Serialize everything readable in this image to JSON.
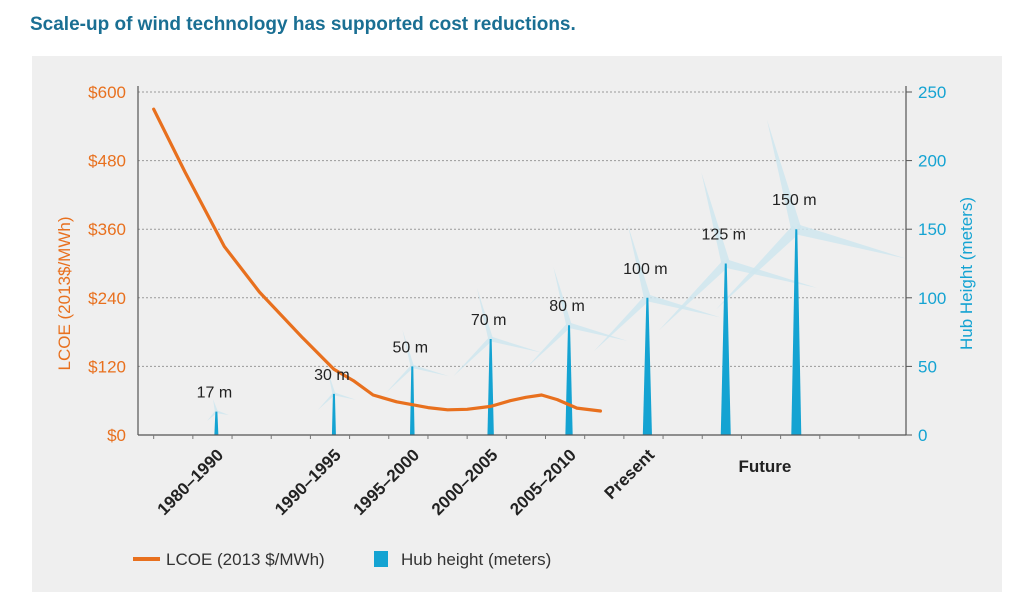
{
  "header": {
    "title": "Scale-up of wind technology has supported cost reductions."
  },
  "colors": {
    "lcoe": "#e8701e",
    "hub": "#14a3d2",
    "grid": "#9a9a9a",
    "panel": "#efefef",
    "title": "#1a6f93"
  },
  "chart_data": {
    "type": "line",
    "categories": [
      "1980–1990",
      "1990–1995",
      "1995–2000",
      "2000–2005",
      "2005–2010",
      "Present",
      "Future"
    ],
    "left_axis": {
      "label": "LCOE (2013$/MWh)",
      "ylim": [
        0,
        600
      ],
      "ticks": [
        "$0",
        "$120",
        "$240",
        "$360",
        "$480",
        "$600"
      ],
      "tick_values": [
        0,
        120,
        240,
        360,
        480,
        600
      ]
    },
    "right_axis": {
      "label": "Hub Height (meters)",
      "ylim": [
        0,
        250
      ],
      "ticks": [
        "0",
        "50",
        "100",
        "150",
        "200",
        "250"
      ],
      "tick_values": [
        0,
        50,
        100,
        150,
        200,
        250
      ]
    },
    "series": [
      {
        "name": "LCOE (2013 $/MWh)",
        "type": "line",
        "points": [
          [
            1.0,
            570
          ],
          [
            1.4,
            460
          ],
          [
            1.9,
            330
          ],
          [
            2.35,
            250
          ],
          [
            2.9,
            170
          ],
          [
            3.3,
            115
          ],
          [
            3.55,
            95
          ],
          [
            3.8,
            70
          ],
          [
            4.1,
            58
          ],
          [
            4.5,
            48
          ],
          [
            4.75,
            44
          ],
          [
            5.0,
            45
          ],
          [
            5.3,
            50
          ],
          [
            5.55,
            60
          ],
          [
            5.75,
            66
          ],
          [
            5.95,
            70
          ],
          [
            6.15,
            62
          ],
          [
            6.4,
            47
          ],
          [
            6.7,
            42
          ]
        ]
      },
      {
        "name": "Hub height (meters)",
        "type": "bar",
        "points": [
          {
            "x": 1.8,
            "value": 17,
            "label": "17 m"
          },
          {
            "x": 3.3,
            "value": 30,
            "label": "30 m"
          },
          {
            "x": 4.3,
            "value": 50,
            "label": "50 m"
          },
          {
            "x": 5.3,
            "value": 70,
            "label": "70 m"
          },
          {
            "x": 6.3,
            "value": 80,
            "label": "80 m"
          },
          {
            "x": 7.3,
            "value": 100,
            "label": "100 m"
          },
          {
            "x": 8.3,
            "value": 125,
            "label": "125 m"
          },
          {
            "x": 9.2,
            "value": 150,
            "label": "150 m"
          }
        ]
      }
    ],
    "x_tick_positions": [
      1.8,
      3.3,
      4.3,
      5.3,
      6.3,
      7.3,
      8.8
    ],
    "xlim": [
      0.8,
      10.6
    ],
    "grid": true,
    "legend": "bottom-left"
  }
}
